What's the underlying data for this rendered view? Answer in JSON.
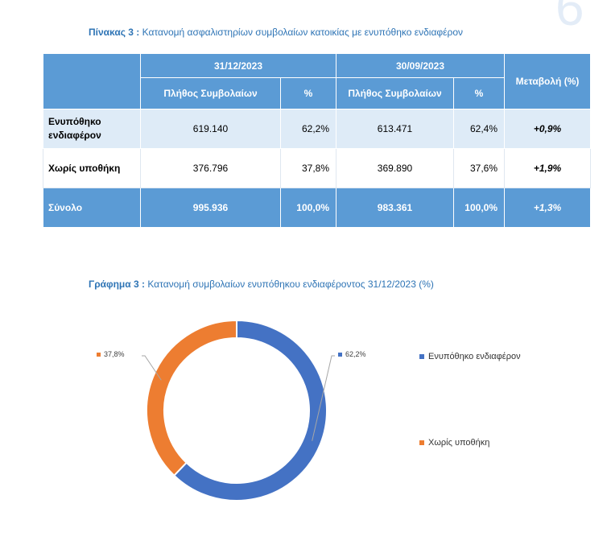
{
  "page_number": "6",
  "table_caption": {
    "label": "Πίνακας 3 :",
    "text": "Κατανομή ασφαλιστηρίων συμβολαίων κατοικίας με ενυπόθηκο ενδιαφέρον"
  },
  "table": {
    "period1": "31/12/2023",
    "period2": "30/09/2023",
    "change_header": "Μεταβολή (%)",
    "col_count": "Πλήθος Συμβολαίων",
    "col_pct": "%",
    "rows": [
      {
        "label": "Ενυπόθηκο ενδιαφέρον",
        "count1": "619.140",
        "pct1": "62,2%",
        "count2": "613.471",
        "pct2": "62,4%",
        "change": "+0,9%"
      },
      {
        "label": "Χωρίς υποθήκη",
        "count1": "376.796",
        "pct1": "37,8%",
        "count2": "369.890",
        "pct2": "37,6%",
        "change": "+1,9%"
      },
      {
        "label": "Σύνολο",
        "count1": "995.936",
        "pct1": "100,0%",
        "count2": "983.361",
        "pct2": "100,0%",
        "change": "+1,3%"
      }
    ]
  },
  "chart_caption": {
    "label": "Γράφημα 3 :",
    "text": "Κατανομή συμβολαίων ενυπόθηκου ενδιαφέροντος 31/12/2023 (%)"
  },
  "chart_data": {
    "type": "pie",
    "title": "",
    "categories": [
      "Ενυπόθηκο ενδιαφέρον",
      "Χωρίς υποθήκη"
    ],
    "values": [
      62.2,
      37.8
    ],
    "data_labels": [
      "62,2%",
      "37,8%"
    ],
    "colors": [
      "#4472c4",
      "#ed7d31"
    ],
    "style": "donut",
    "legend": "right"
  },
  "colors": {
    "header_blue": "#5b9bd5",
    "row_light": "#deebf7",
    "caption": "#2e74b5"
  }
}
